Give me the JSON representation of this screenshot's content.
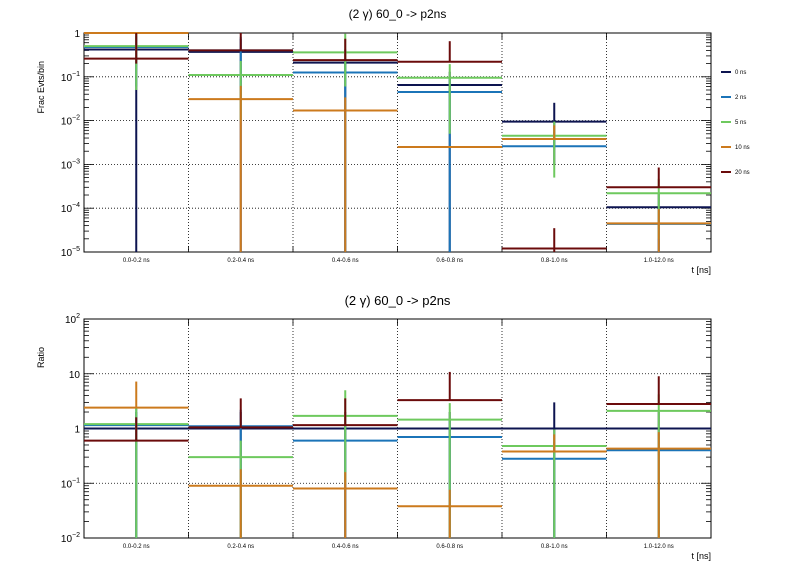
{
  "chart_data": [
    {
      "type": "step-errorbar",
      "title": "(2 γ) 60_0 -> p2ns",
      "xlabel": "t [ns]",
      "ylabel": "Frac Evts/bin",
      "yscale": "log",
      "ylim": [
        1e-05,
        1
      ],
      "ytick_labels": [
        {
          "v": 1,
          "base": "1",
          "exp": ""
        },
        {
          "v": 0.1,
          "base": "10",
          "exp": "−1"
        },
        {
          "v": 0.01,
          "base": "10",
          "exp": "−2"
        },
        {
          "v": 0.001,
          "base": "10",
          "exp": "−3"
        },
        {
          "v": 0.0001,
          "base": "10",
          "exp": "−4"
        },
        {
          "v": 1e-05,
          "base": "10",
          "exp": "−5"
        }
      ],
      "categories": [
        "0.0-0.2 ns",
        "0.2-0.4 ns",
        "0.4-0.6 ns",
        "0.6-0.8 ns",
        "0.8-1.0 ns",
        "1.0-12.0 ns"
      ],
      "grid": true,
      "legend_position": "right",
      "series": [
        {
          "name": "0 ns",
          "color": "#0d1450",
          "values": [
            0.42,
            0.37,
            0.21,
            0.065,
            0.0095,
            0.000105
          ],
          "err_lo": [
            0.42,
            0.37,
            0.21,
            0.065,
            0.0085,
            0.0001
          ],
          "err_hi": [
            0.42,
            0.37,
            0.21,
            0.065,
            0.016,
            0.00012
          ]
        },
        {
          "name": "2 ns",
          "color": "#1b74b8",
          "values": [
            0.48,
            0.4,
            0.125,
            0.045,
            0.0026,
            4.4e-05
          ],
          "err_lo": [
            0.42,
            0.37,
            0.125,
            0.045,
            0.00016,
            4.4e-05
          ],
          "err_hi": [
            0.5,
            0.42,
            0.14,
            0.05,
            0.003,
            5e-05
          ]
        },
        {
          "name": "5 ns",
          "color": "#6ec95e",
          "values": [
            0.5,
            0.11,
            0.36,
            0.095,
            0.0045,
            0.00022
          ],
          "err_lo": [
            0.45,
            0.1,
            0.3,
            0.09,
            0.004,
            0.0002
          ],
          "err_hi": [
            0.55,
            0.12,
            0.6,
            0.1,
            0.005,
            0.00025
          ]
        },
        {
          "name": "10 ns",
          "color": "#cc7a1d",
          "values": [
            1.0,
            0.031,
            0.017,
            0.0025,
            0.0038,
            4.5e-05
          ],
          "err_lo": [
            0.06,
            0.031,
            0.017,
            2.4e-05,
            7e-05,
            4.5e-05
          ],
          "err_hi": [
            1.0,
            0.031,
            0.017,
            0.00012,
            0.004,
            5e-05
          ]
        },
        {
          "name": "20 ns",
          "color": "#6b0b0b",
          "values": [
            0.26,
            0.4,
            0.24,
            0.22,
            1.2e-05,
            0.0003
          ],
          "err_lo": [
            0.06,
            0.00023,
            1e-05,
            1e-05,
            1e-05,
            1e-05
          ],
          "err_hi": [
            1.0,
            0.7,
            0.5,
            0.43,
            2.3e-05,
            0.00055
          ]
        }
      ]
    },
    {
      "type": "step-errorbar",
      "title": "(2 γ) 60_0 -> p2ns",
      "xlabel": "t [ns]",
      "ylabel": "Ratio",
      "yscale": "log",
      "ylim": [
        0.01,
        100
      ],
      "ytick_labels": [
        {
          "v": 100,
          "base": "10",
          "exp": "2"
        },
        {
          "v": 10,
          "base": "10",
          "exp": ""
        },
        {
          "v": 1,
          "base": "1",
          "exp": ""
        },
        {
          "v": 0.1,
          "base": "10",
          "exp": "−1"
        },
        {
          "v": 0.01,
          "base": "10",
          "exp": "−2"
        }
      ],
      "categories": [
        "0.0-0.2 ns",
        "0.2-0.4 ns",
        "0.4-0.6 ns",
        "0.6-0.8 ns",
        "0.8-1.0 ns",
        "1.0-12.0 ns"
      ],
      "grid": true,
      "series": [
        {
          "name": "0 ns",
          "color": "#0d1450",
          "values": [
            1.0,
            1.0,
            1.0,
            1.0,
            1.0,
            1.0
          ],
          "err_lo": [
            1.0,
            1.0,
            1.0,
            1.0,
            1.0,
            1.0
          ],
          "err_hi": [
            1.0,
            1.0,
            1.0,
            1.0,
            2.0,
            1.0
          ]
        },
        {
          "name": "2 ns",
          "color": "#1b74b8",
          "values": [
            1.15,
            1.1,
            0.6,
            0.7,
            0.28,
            0.4
          ],
          "err_lo": [
            1.15,
            1.1,
            0.6,
            0.7,
            0.28,
            0.4
          ],
          "err_hi": [
            1.15,
            1.1,
            0.6,
            0.7,
            0.28,
            0.4
          ]
        },
        {
          "name": "5 ns",
          "color": "#6ec95e",
          "values": [
            1.2,
            0.3,
            1.7,
            1.45,
            0.48,
            2.1
          ],
          "err_lo": [
            1.2,
            0.3,
            1.6,
            1.45,
            0.48,
            2.1
          ],
          "err_hi": [
            1.2,
            0.3,
            3.3,
            1.45,
            0.48,
            2.1
          ]
        },
        {
          "name": "10 ns",
          "color": "#cc7a1d",
          "values": [
            2.4,
            0.09,
            0.08,
            0.038,
            0.38,
            0.43
          ],
          "err_lo": [
            0.01,
            0.09,
            0.08,
            0.038,
            0.01,
            0.43
          ],
          "err_hi": [
            4.8,
            0.09,
            0.08,
            0.038,
            0.4,
            0.43
          ]
        },
        {
          "name": "20 ns",
          "color": "#6b0b0b",
          "values": [
            0.6,
            1.05,
            1.15,
            3.3,
            0.0,
            2.8
          ],
          "err_lo": [
            0.01,
            0.01,
            0.01,
            0.01,
            0.01,
            0.01
          ],
          "err_hi": [
            1.0,
            2.5,
            2.4,
            7.5,
            0.01,
            6.2
          ]
        }
      ]
    }
  ]
}
